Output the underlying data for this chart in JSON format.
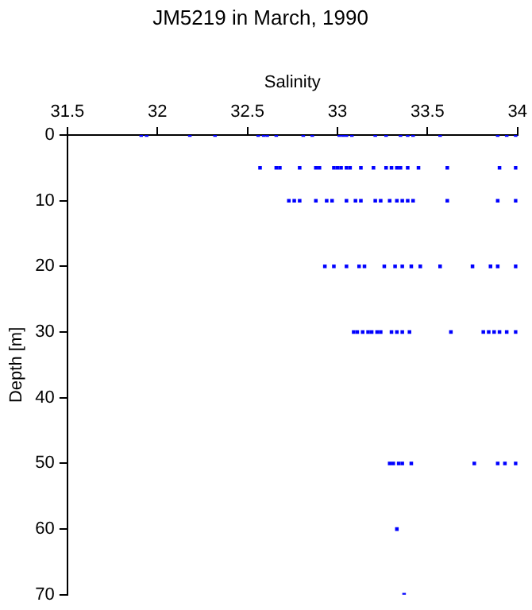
{
  "chart_data": {
    "type": "scatter",
    "title": "JM5219 in March, 1990",
    "xlabel": "Salinity",
    "ylabel": "Depth [m]",
    "x": [
      31.91,
      31.94,
      32.18,
      32.32,
      32.56,
      32.59,
      32.61,
      32.66,
      32.81,
      32.86,
      33.01,
      33.03,
      33.05,
      33.08,
      33.21,
      33.27,
      33.35,
      33.39,
      33.42,
      33.57,
      33.89,
      33.94,
      33.99,
      32.57,
      32.66,
      32.68,
      32.79,
      32.88,
      32.9,
      32.98,
      33.0,
      33.02,
      33.05,
      33.07,
      33.13,
      33.2,
      33.27,
      33.3,
      33.33,
      33.35,
      33.39,
      33.45,
      33.61,
      33.9,
      33.99,
      32.73,
      32.76,
      32.79,
      32.88,
      32.94,
      32.97,
      33.05,
      33.1,
      33.13,
      33.21,
      33.24,
      33.29,
      33.33,
      33.36,
      33.39,
      33.42,
      33.61,
      33.89,
      33.99,
      32.93,
      32.98,
      33.05,
      33.12,
      33.15,
      33.26,
      33.32,
      33.36,
      33.41,
      33.46,
      33.57,
      33.75,
      33.85,
      33.89,
      33.99,
      33.09,
      33.11,
      33.14,
      33.17,
      33.19,
      33.22,
      33.24,
      33.3,
      33.33,
      33.36,
      33.4,
      33.63,
      33.81,
      33.84,
      33.87,
      33.9,
      33.94,
      33.99,
      33.29,
      33.31,
      33.34,
      33.36,
      33.41,
      33.76,
      33.89,
      33.93,
      33.99,
      33.33,
      33.37
    ],
    "values": [
      0,
      0,
      0,
      0,
      0,
      0,
      0,
      0,
      0,
      0,
      0,
      0,
      0,
      0,
      0,
      0,
      0,
      0,
      0,
      0,
      0,
      0,
      0,
      5,
      5,
      5,
      5,
      5,
      5,
      5,
      5,
      5,
      5,
      5,
      5,
      5,
      5,
      5,
      5,
      5,
      5,
      5,
      5,
      5,
      5,
      10,
      10,
      10,
      10,
      10,
      10,
      10,
      10,
      10,
      10,
      10,
      10,
      10,
      10,
      10,
      10,
      10,
      10,
      10,
      20,
      20,
      20,
      20,
      20,
      20,
      20,
      20,
      20,
      20,
      20,
      20,
      20,
      20,
      20,
      30,
      30,
      30,
      30,
      30,
      30,
      30,
      30,
      30,
      30,
      30,
      30,
      30,
      30,
      30,
      30,
      30,
      30,
      50,
      50,
      50,
      50,
      50,
      50,
      50,
      50,
      50,
      60,
      70
    ],
    "color": "#0000ff",
    "marker": "square",
    "xlim": [
      31.5,
      34
    ],
    "xticks": [
      31.5,
      32,
      32.5,
      33,
      33.5,
      34
    ],
    "ylim": [
      70,
      0
    ],
    "yticks": [
      0,
      10,
      20,
      30,
      40,
      50,
      60,
      70
    ]
  }
}
